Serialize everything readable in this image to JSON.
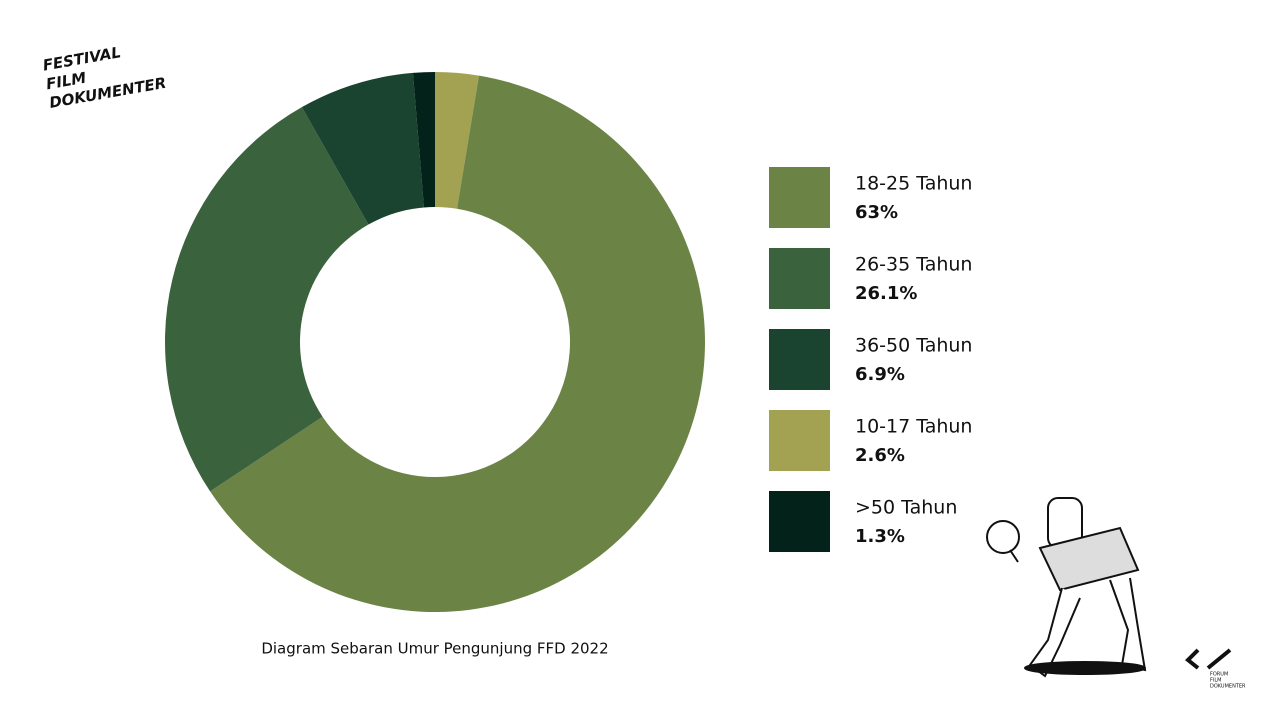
{
  "logo": [
    "FESTIVAL",
    "FILM",
    "DOKUMENTER"
  ],
  "footer_logo": [
    "FORUM",
    "FILM",
    "DOKUMENTER"
  ],
  "chart_data": {
    "type": "donut",
    "caption": "Diagram Sebaran Umur Pengunjung FFD 2022",
    "categories": [
      "18-25 Tahun",
      "26-35 Tahun",
      "36-50 Tahun",
      "10-17 Tahun",
      ">50 Tahun"
    ],
    "values": [
      63,
      26.1,
      6.9,
      2.6,
      1.3
    ],
    "value_labels": [
      "63%",
      "26.1%",
      "6.9%",
      "2.6%",
      "1.3%"
    ],
    "colors": [
      "#6b8446",
      "#3a623c",
      "#1a4330",
      "#a3a253",
      "#02221a"
    ]
  }
}
